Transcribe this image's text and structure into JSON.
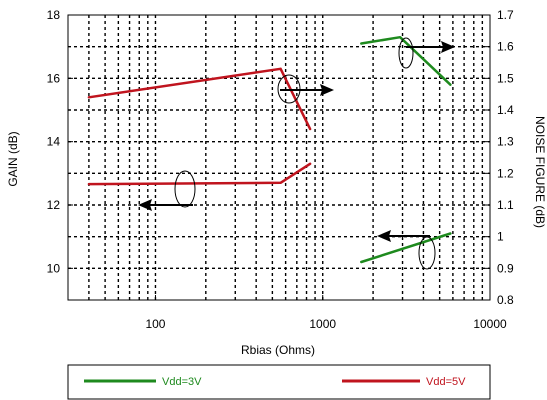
{
  "chart_data": {
    "type": "line",
    "xlabel": "Rbias (Ohms)",
    "ylabel": "GAIN (dB)",
    "y2label": "NOISE FIGURE (dB)",
    "xscale": "log",
    "xlim": [
      30,
      10000
    ],
    "ylim": [
      9,
      18
    ],
    "y2lim": [
      0.8,
      1.7
    ],
    "grid": true,
    "legend_position": "bottom",
    "xticks": [
      "100",
      "1000",
      "10000"
    ],
    "yticks": [
      "10",
      "12",
      "14",
      "16",
      "18"
    ],
    "y2ticks": [
      "0.8",
      "0.9",
      "1",
      "1.1",
      "1.2",
      "1.3",
      "1.4",
      "1.5",
      "1.6",
      "1.7"
    ],
    "series": [
      {
        "name": "Vdd=3V",
        "metric": "gain",
        "axis": "left",
        "color": "#1e8a1e",
        "x": [
          1700,
          2900,
          5800
        ],
        "y": [
          17.1,
          17.3,
          15.8
        ]
      },
      {
        "name": "Vdd=3V",
        "metric": "noise figure",
        "axis": "right",
        "color": "#1e8a1e",
        "x": [
          1700,
          5800
        ],
        "y": [
          0.92,
          1.01
        ]
      },
      {
        "name": "Vdd=5V",
        "metric": "gain",
        "axis": "left",
        "color": "#c0141e",
        "x": [
          40,
          560,
          840
        ],
        "y": [
          15.4,
          16.3,
          14.4
        ]
      },
      {
        "name": "Vdd=5V",
        "metric": "noise figure",
        "axis": "right",
        "color": "#c0141e",
        "x": [
          40,
          560,
          840
        ],
        "y": [
          1.166,
          1.17,
          1.23
        ]
      }
    ],
    "legend": [
      {
        "label": "Vdd=3V",
        "color": "#1e8a1e"
      },
      {
        "label": "Vdd=5V",
        "color": "#c0141e"
      }
    ]
  }
}
